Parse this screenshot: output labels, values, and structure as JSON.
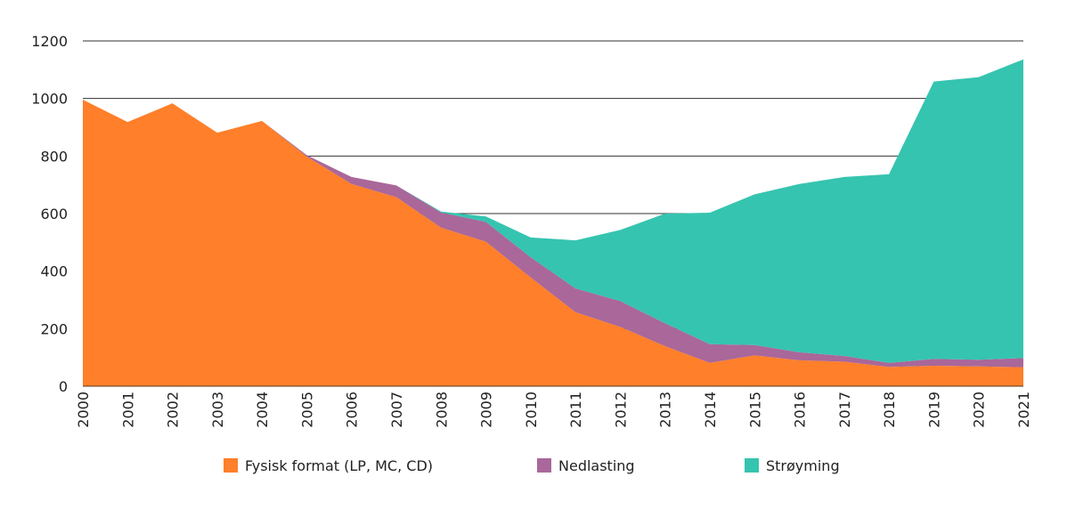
{
  "chart_data": {
    "type": "area",
    "stacked": true,
    "title": "",
    "xlabel": "",
    "ylabel": "",
    "ylim": [
      0,
      1200
    ],
    "yticks": [
      0,
      200,
      400,
      600,
      800,
      1000,
      1200
    ],
    "grid": true,
    "legend_position": "bottom",
    "x": [
      "2000",
      "2001",
      "2002",
      "2003",
      "2004",
      "2005",
      "2006",
      "2007",
      "2008",
      "2009",
      "2010",
      "2011",
      "2012",
      "2013",
      "2014",
      "2015",
      "2016",
      "2017",
      "2018",
      "2019",
      "2020",
      "2021"
    ],
    "series": [
      {
        "name": "Fysisk format (LP, MC, CD)",
        "color": "#FF7F2A",
        "values": [
          996,
          918,
          983,
          881,
          922,
          798,
          703,
          657,
          551,
          502,
          378,
          257,
          206,
          139,
          81,
          107,
          90,
          85,
          67,
          71,
          69,
          66
        ]
      },
      {
        "name": "Nedlasting",
        "color": "#A9679A",
        "values": [
          0,
          0,
          0,
          0,
          0,
          5,
          24,
          41,
          53,
          69,
          70,
          83,
          90,
          80,
          65,
          36,
          28,
          20,
          14,
          24,
          23,
          32
        ]
      },
      {
        "name": "Strøyming",
        "color": "#35C4AF",
        "values": [
          0,
          0,
          0,
          0,
          0,
          0,
          0,
          0,
          3,
          19,
          69,
          167,
          247,
          381,
          457,
          524,
          585,
          622,
          656,
          964,
          982,
          1038
        ]
      }
    ]
  }
}
